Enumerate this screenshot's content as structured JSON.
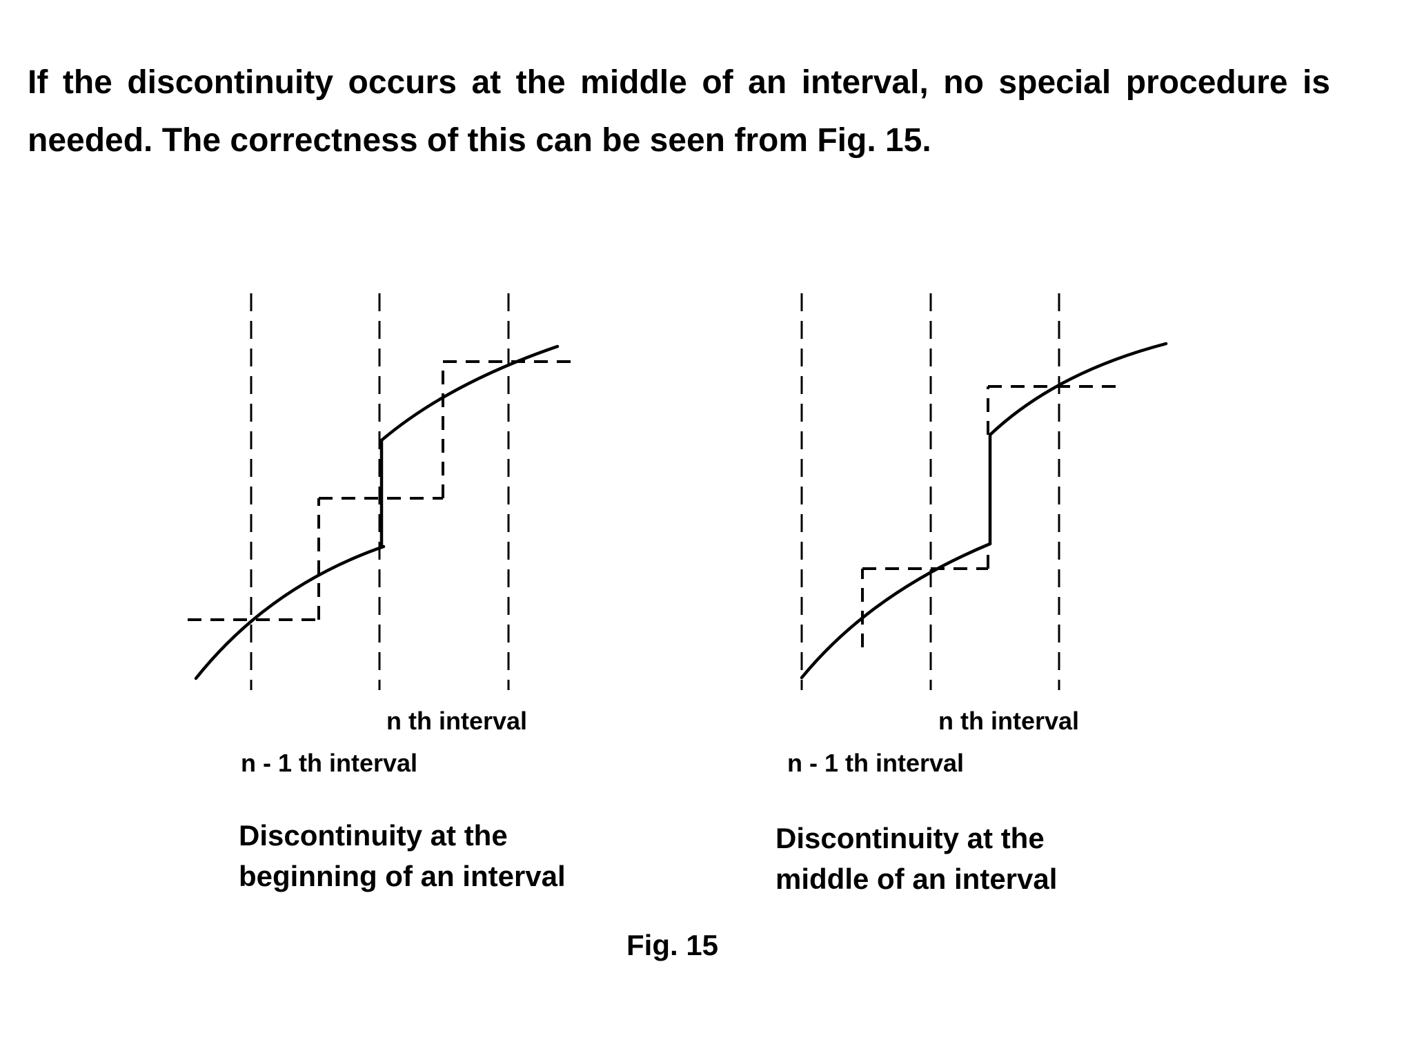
{
  "paragraph": "If the discontinuity occurs at the middle of an interval, no special procedure is needed. The correctness of this can be seen from Fig. 15.",
  "figure": {
    "left_panel": {
      "n_label": "n th interval",
      "n1_label": "n - 1 th interval",
      "caption_line1": "Discontinuity at the",
      "caption_line2": "beginning of an interval"
    },
    "right_panel": {
      "n_label": "n th interval",
      "n1_label": "n - 1 th interval",
      "caption_line1": "Discontinuity at the",
      "caption_line2": "middle of an interval"
    },
    "fig_label": "Fig. 15"
  },
  "colors": {
    "ink": "#000000",
    "background": "#ffffff"
  }
}
